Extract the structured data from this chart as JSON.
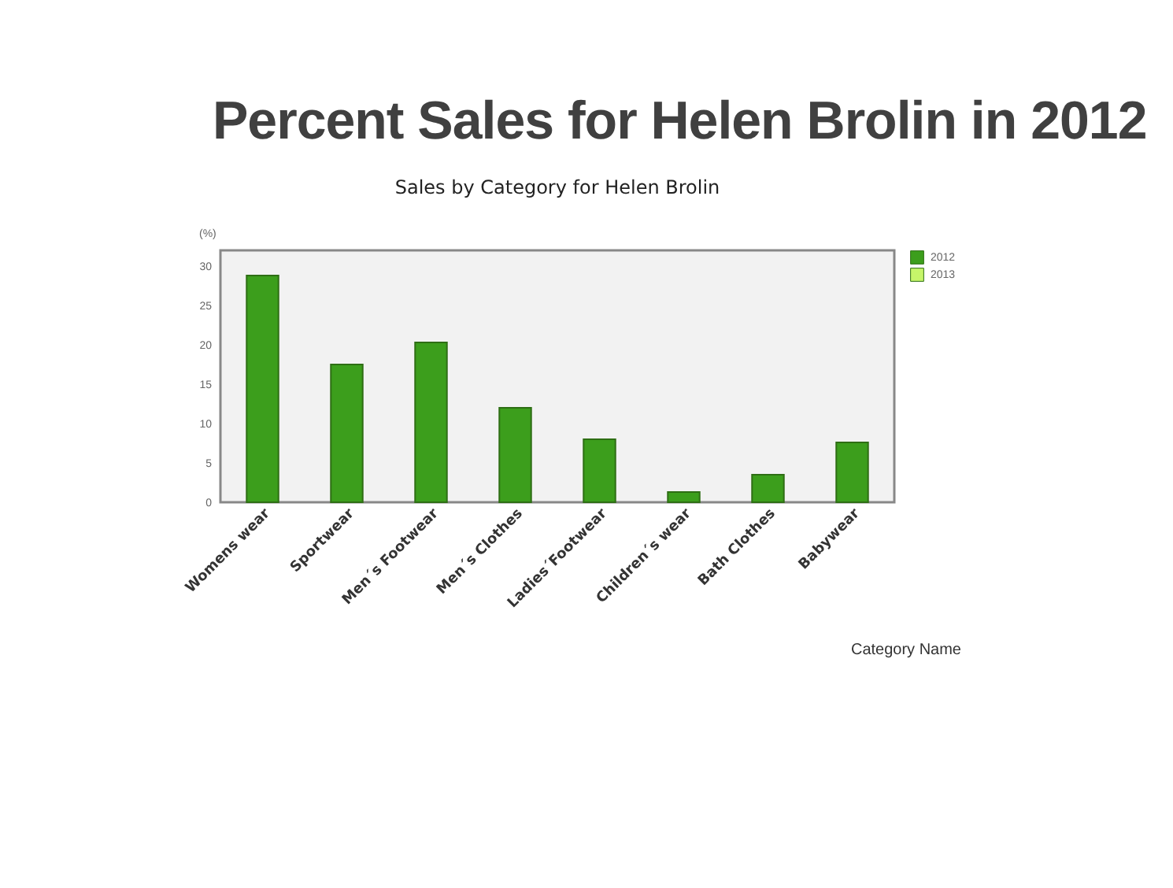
{
  "chart_data": {
    "type": "bar",
    "title": "Percent Sales for Helen Brolin in 2012",
    "subtitle": "Sales by Category for Helen Brolin",
    "xlabel": "Category Name",
    "ylabel": "(%)",
    "categories": [
      "Womens wear",
      "Sportwear",
      "Men´s Footwear",
      "Men´s Clothes",
      "Ladies´Footwear",
      "Children´s wear",
      "Bath Clothes",
      "Babywear"
    ],
    "series": [
      {
        "name": "2012",
        "color": "#3c9e1c",
        "values": [
          28.8,
          17.5,
          20.3,
          12.0,
          8.0,
          1.3,
          3.5,
          7.6
        ]
      },
      {
        "name": "2013",
        "color": "#c6f56a",
        "values": [
          null,
          null,
          null,
          null,
          null,
          null,
          null,
          null
        ]
      }
    ],
    "ylim": [
      0,
      32
    ],
    "yticks": [
      0,
      5,
      10,
      15,
      20,
      25,
      30
    ],
    "grid": false,
    "legend": "top right"
  }
}
